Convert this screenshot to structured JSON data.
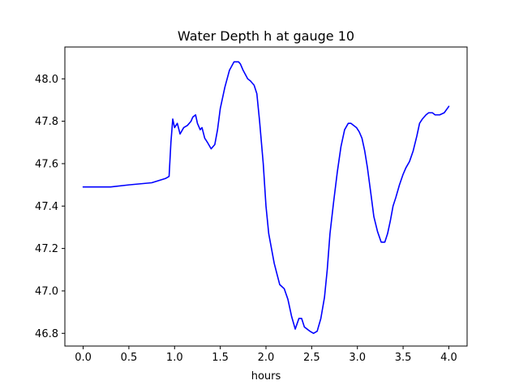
{
  "chart_data": {
    "type": "line",
    "title": "Water Depth h at gauge 10",
    "xlabel": "hours",
    "ylabel": "",
    "xlim": [
      -0.2,
      4.2
    ],
    "ylim": [
      46.74,
      48.15
    ],
    "grid": false,
    "x_ticks": [
      0.0,
      0.5,
      1.0,
      1.5,
      2.0,
      2.5,
      3.0,
      3.5,
      4.0
    ],
    "x_tick_labels": [
      "0.0",
      "0.5",
      "1.0",
      "1.5",
      "2.0",
      "2.5",
      "3.0",
      "3.5",
      "4.0"
    ],
    "y_ticks": [
      46.8,
      47.0,
      47.2,
      47.4,
      47.6,
      47.8,
      48.0
    ],
    "y_tick_labels": [
      "46.8",
      "47.0",
      "47.2",
      "47.4",
      "47.6",
      "47.8",
      "48.0"
    ],
    "series": [
      {
        "color": "#0000ff",
        "x": [
          0.0,
          0.3,
          0.5,
          0.75,
          0.9,
          0.94,
          0.96,
          0.98,
          1.0,
          1.03,
          1.06,
          1.1,
          1.14,
          1.18,
          1.2,
          1.23,
          1.25,
          1.28,
          1.3,
          1.33,
          1.36,
          1.4,
          1.44,
          1.47,
          1.5,
          1.55,
          1.6,
          1.65,
          1.7,
          1.72,
          1.75,
          1.8,
          1.83,
          1.87,
          1.9,
          1.93,
          1.97,
          2.0,
          2.03,
          2.06,
          2.09,
          2.12,
          2.15,
          2.2,
          2.24,
          2.28,
          2.32,
          2.36,
          2.39,
          2.42,
          2.45,
          2.48,
          2.52,
          2.56,
          2.6,
          2.64,
          2.67,
          2.7,
          2.74,
          2.78,
          2.82,
          2.86,
          2.9,
          2.93,
          2.96,
          2.99,
          3.02,
          3.05,
          3.08,
          3.11,
          3.15,
          3.18,
          3.22,
          3.26,
          3.3,
          3.33,
          3.36,
          3.39,
          3.42,
          3.46,
          3.5,
          3.53,
          3.57,
          3.61,
          3.65,
          3.68,
          3.71,
          3.75,
          3.78,
          3.82,
          3.85,
          3.9,
          3.95,
          4.0
        ],
        "y": [
          47.49,
          47.49,
          47.5,
          47.51,
          47.53,
          47.54,
          47.7,
          47.81,
          47.77,
          47.79,
          47.74,
          47.77,
          47.78,
          47.8,
          47.82,
          47.83,
          47.79,
          47.76,
          47.77,
          47.72,
          47.7,
          47.67,
          47.69,
          47.76,
          47.86,
          47.96,
          48.04,
          48.08,
          48.08,
          48.07,
          48.04,
          48.0,
          47.99,
          47.97,
          47.93,
          47.8,
          47.6,
          47.4,
          47.27,
          47.2,
          47.13,
          47.08,
          47.03,
          47.01,
          46.96,
          46.88,
          46.82,
          46.87,
          46.87,
          46.83,
          46.82,
          46.81,
          46.8,
          46.81,
          46.87,
          46.97,
          47.1,
          47.27,
          47.42,
          47.56,
          47.68,
          47.76,
          47.79,
          47.79,
          47.78,
          47.77,
          47.75,
          47.72,
          47.66,
          47.58,
          47.45,
          47.35,
          47.28,
          47.23,
          47.23,
          47.27,
          47.33,
          47.4,
          47.44,
          47.5,
          47.55,
          47.58,
          47.61,
          47.66,
          47.73,
          47.79,
          47.81,
          47.83,
          47.84,
          47.84,
          47.83,
          47.83,
          47.84,
          47.87
        ]
      }
    ]
  }
}
